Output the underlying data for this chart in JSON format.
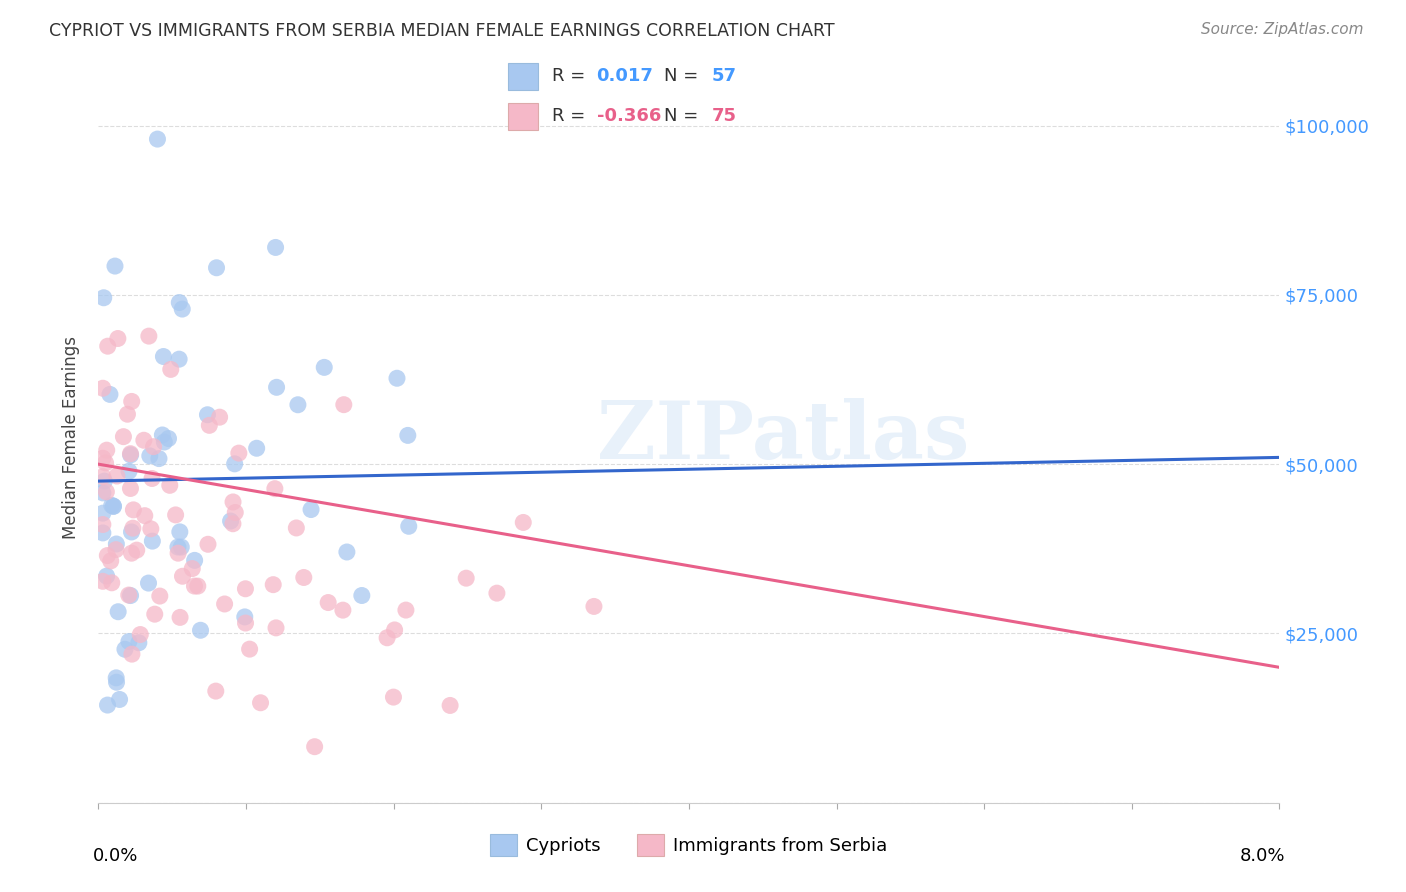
{
  "title": "CYPRIOT VS IMMIGRANTS FROM SERBIA MEDIAN FEMALE EARNINGS CORRELATION CHART",
  "source": "Source: ZipAtlas.com",
  "ylabel": "Median Female Earnings",
  "yticks": [
    0,
    25000,
    50000,
    75000,
    100000
  ],
  "ytick_labels": [
    "",
    "$25,000",
    "$50,000",
    "$75,000",
    "$100,000"
  ],
  "xmin": 0.0,
  "xmax": 0.08,
  "ymin": 0,
  "ymax": 108000,
  "cypriot_color": "#a8c8f0",
  "serbia_color": "#f5b8c8",
  "cypriot_line_color": "#3366cc",
  "serbia_line_color": "#e8608a",
  "legend_R_cypriot": "0.017",
  "legend_N_cypriot": "57",
  "legend_R_serbia": "-0.366",
  "legend_N_serbia": "75",
  "watermark": "ZIPatlas",
  "grid_color": "#dddddd",
  "ytick_color": "#4499ff",
  "title_color": "#333333",
  "source_color": "#888888"
}
